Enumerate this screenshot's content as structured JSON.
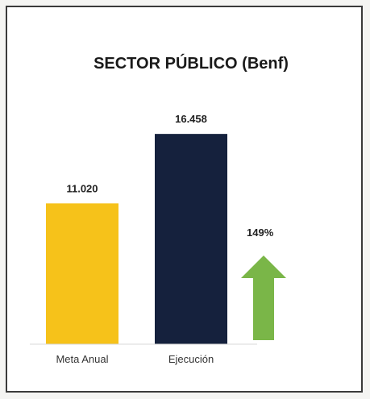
{
  "chart_data": {
    "type": "bar",
    "title": "SECTOR PÚBLICO (Benf)",
    "categories": [
      "Meta Anual",
      "Ejecución"
    ],
    "values": [
      11020,
      16458
    ],
    "value_labels": [
      "11.020",
      "16.458"
    ],
    "colors": [
      "#f6c21a",
      "#15213d"
    ],
    "ylim": [
      0,
      20000
    ],
    "grid": false,
    "legend": "none",
    "indicator": {
      "label": "149%",
      "icon": "up-arrow-icon",
      "color": "#7ab648"
    }
  }
}
